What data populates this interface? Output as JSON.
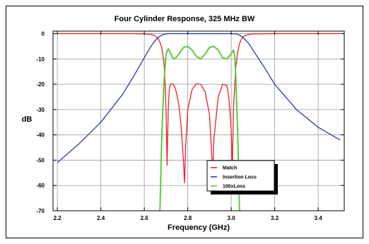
{
  "chart_data": {
    "type": "line",
    "title": "Four Cylinder Response, 325 MHz BW",
    "xlabel": "Frequency (GHz)",
    "ylabel": "dB",
    "xlim": [
      2.18,
      3.52
    ],
    "ylim": [
      -70,
      1
    ],
    "x_ticks": [
      2.2,
      2.4,
      2.6,
      2.8,
      3.0,
      3.2,
      3.4
    ],
    "x_tick_labels": [
      "2.2",
      "2.4",
      "2.6",
      "2.8",
      "3.0",
      "3.2",
      "3.4"
    ],
    "y_ticks": [
      0,
      -10,
      -20,
      -30,
      -40,
      -50,
      -60,
      -70
    ],
    "y_tick_labels": [
      "0",
      "-10",
      "-20",
      "-30",
      "-40",
      "-50",
      "-60",
      "-70"
    ],
    "grid": true,
    "legend_position": "lower-right",
    "series": [
      {
        "name": "Match",
        "color": "#e8202a",
        "x": [
          2.2,
          2.4,
          2.5,
          2.55,
          2.6,
          2.62,
          2.64,
          2.65,
          2.66,
          2.67,
          2.68,
          2.69,
          2.695,
          2.7,
          2.705,
          2.71,
          2.715,
          2.72,
          2.73,
          2.74,
          2.75,
          2.76,
          2.77,
          2.78,
          2.785,
          2.79,
          2.8,
          2.82,
          2.84,
          2.86,
          2.88,
          2.9,
          2.91,
          2.915,
          2.92,
          2.94,
          2.96,
          2.98,
          2.99,
          3.0,
          3.005,
          3.01,
          3.02,
          3.03,
          3.04,
          3.05,
          3.06,
          3.08,
          3.1,
          3.2,
          3.4,
          3.5
        ],
        "values": [
          0,
          0,
          0,
          0,
          -0.1,
          -0.2,
          -0.5,
          -0.9,
          -1.6,
          -3,
          -5.5,
          -11,
          -18,
          -30,
          -52,
          -30,
          -22,
          -20,
          -19.8,
          -21,
          -24,
          -29,
          -37,
          -50,
          -59,
          -45,
          -30,
          -22,
          -19.8,
          -20,
          -23,
          -32,
          -48,
          -55,
          -42,
          -25,
          -20,
          -20.5,
          -26,
          -38,
          -55,
          -30,
          -14,
          -7,
          -3.5,
          -1.7,
          -0.9,
          -0.3,
          -0.1,
          0,
          0,
          0
        ]
      },
      {
        "name": "Insertion Loss",
        "color": "#2c3aa8",
        "x": [
          2.2,
          2.3,
          2.4,
          2.5,
          2.55,
          2.6,
          2.62,
          2.64,
          2.66,
          2.67,
          2.68,
          2.69,
          2.7,
          2.71,
          2.72,
          2.74,
          2.8,
          2.9,
          3.0,
          3.02,
          3.03,
          3.04,
          3.05,
          3.06,
          3.08,
          3.1,
          3.15,
          3.2,
          3.3,
          3.4,
          3.5
        ],
        "values": [
          -51,
          -43.5,
          -35,
          -24,
          -17,
          -9.5,
          -6.5,
          -3.8,
          -1.8,
          -1.1,
          -0.6,
          -0.3,
          -0.1,
          -0.05,
          0,
          0,
          0,
          0,
          0,
          -0.1,
          -0.3,
          -0.7,
          -1.2,
          -2,
          -3.8,
          -6.5,
          -13,
          -20,
          -30,
          -37,
          -42
        ]
      },
      {
        "name": "100xLoss",
        "color": "#5ccb3c",
        "x": [
          2.672,
          2.68,
          2.69,
          2.7,
          2.71,
          2.72,
          2.73,
          2.74,
          2.76,
          2.78,
          2.8,
          2.82,
          2.84,
          2.86,
          2.88,
          2.9,
          2.92,
          2.94,
          2.96,
          2.98,
          3.0,
          3.01,
          3.015,
          3.02,
          3.03,
          3.038
        ],
        "values": [
          -70,
          -42,
          -20,
          -8,
          -6,
          -7.5,
          -9.5,
          -10,
          -8,
          -5.5,
          -5,
          -6.5,
          -9,
          -10,
          -8,
          -5.5,
          -5,
          -6.5,
          -9.5,
          -10,
          -8,
          -6.5,
          -8,
          -15,
          -40,
          -70
        ]
      }
    ]
  }
}
